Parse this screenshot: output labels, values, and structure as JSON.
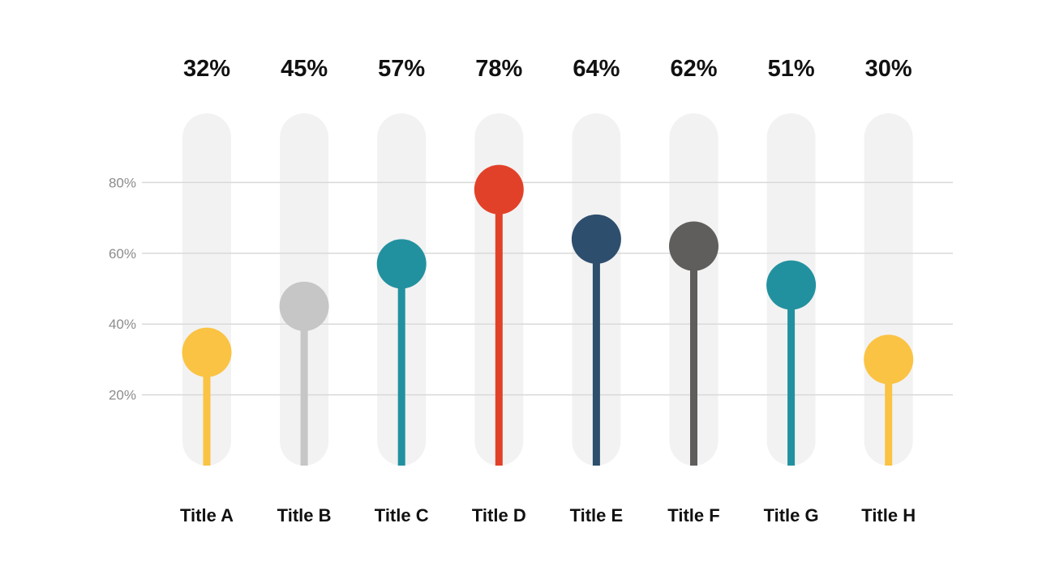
{
  "chart_data": {
    "type": "lollipop",
    "categories": [
      "Title A",
      "Title B",
      "Title C",
      "Title D",
      "Title E",
      "Title F",
      "Title G",
      "Title H"
    ],
    "values": [
      32,
      45,
      57,
      78,
      64,
      62,
      51,
      30
    ],
    "value_labels": [
      "32%",
      "45%",
      "57%",
      "78%",
      "64%",
      "62%",
      "51%",
      "30%"
    ],
    "colors": [
      "#fbc343",
      "#c5c6c5",
      "#22919f",
      "#e24129",
      "#2e4e6d",
      "#5f5e5d",
      "#22919f",
      "#fbc343"
    ],
    "yticks": [
      20,
      40,
      60,
      80
    ],
    "ytick_labels": [
      "20%",
      "40%",
      "60%",
      "80%"
    ],
    "ylim": [
      0,
      100
    ],
    "grid": true,
    "track_color": "#f2f2f2",
    "title": "",
    "xlabel": "",
    "ylabel": ""
  }
}
